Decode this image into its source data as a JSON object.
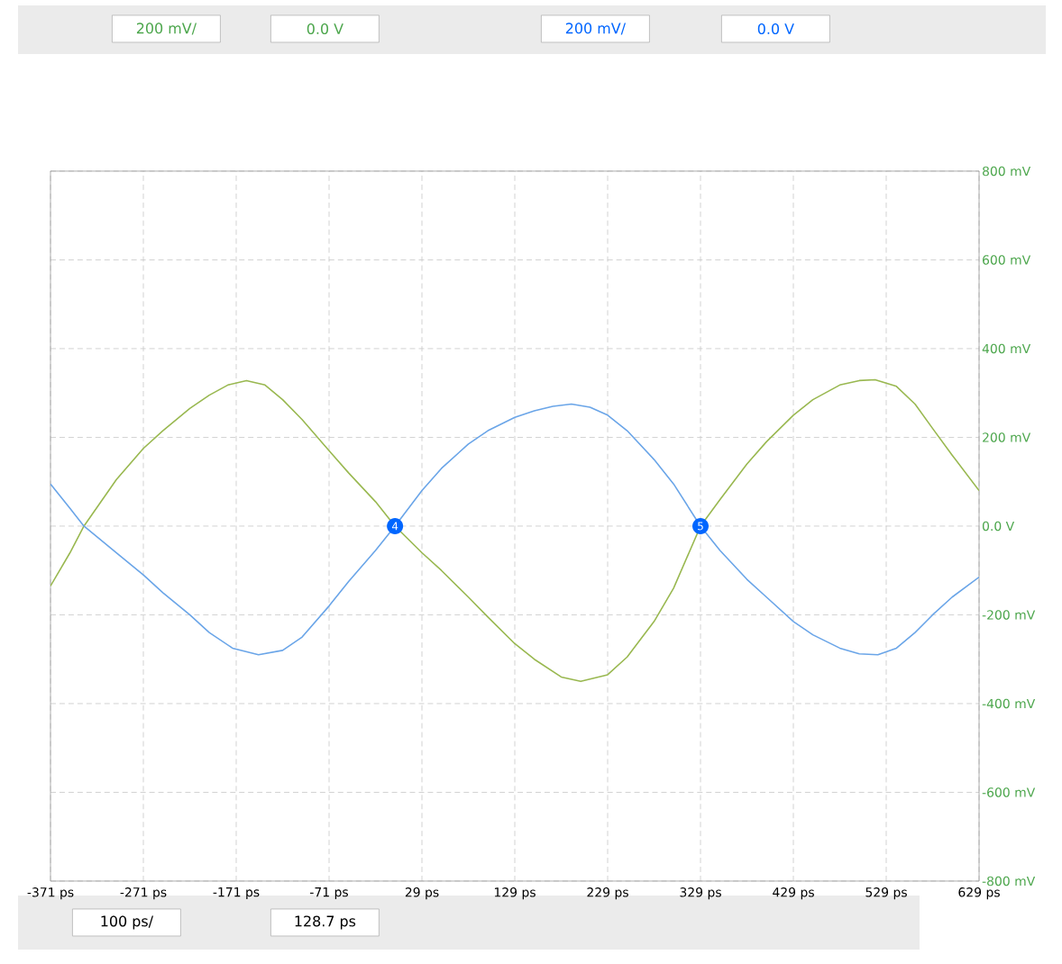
{
  "chart_data": {
    "type": "line",
    "xlim": [
      -371,
      629
    ],
    "ylim": [
      -800,
      800
    ],
    "xticks": [
      {
        "value": -371,
        "label": "-371 ps"
      },
      {
        "value": -271,
        "label": "-271 ps"
      },
      {
        "value": -171,
        "label": "-171 ps"
      },
      {
        "value": -71,
        "label": "-71 ps"
      },
      {
        "value": 29,
        "label": "29 ps"
      },
      {
        "value": 129,
        "label": "129 ps"
      },
      {
        "value": 229,
        "label": "229 ps"
      },
      {
        "value": 329,
        "label": "329 ps"
      },
      {
        "value": 429,
        "label": "429 ps"
      },
      {
        "value": 529,
        "label": "529 ps"
      },
      {
        "value": 629,
        "label": "629 ps"
      }
    ],
    "yticks": [
      {
        "value": -800,
        "label": "-800 mV"
      },
      {
        "value": -600,
        "label": "-600 mV"
      },
      {
        "value": -400,
        "label": "-400 mV"
      },
      {
        "value": -200,
        "label": "-200 mV"
      },
      {
        "value": 0,
        "label": "0.0 V"
      },
      {
        "value": 200,
        "label": "200 mV"
      },
      {
        "value": 400,
        "label": "400 mV"
      },
      {
        "value": 600,
        "label": "600 mV"
      },
      {
        "value": 800,
        "label": "800 mV"
      }
    ],
    "grid": true,
    "marker": "none",
    "line_style": "solid",
    "annotations": [
      "200 mV/",
      "0.0 V",
      "200 mV/",
      "0.0 V",
      "100 ps/",
      "128.7 ps",
      {
        "text": "4",
        "x": 0,
        "y": 0
      },
      {
        "text": "5",
        "x": 329,
        "y": 0
      }
    ],
    "series": [
      {
        "color": "#99b850",
        "x": [
          -371,
          -350,
          -335,
          -300,
          -271,
          -250,
          -221,
          -200,
          -180,
          -160,
          -140,
          -121,
          -100,
          -71,
          -50,
          -21,
          0,
          29,
          50,
          79,
          100,
          129,
          150,
          179,
          200,
          229,
          250,
          279,
          300,
          329,
          350,
          379,
          400,
          429,
          450,
          479,
          500,
          517,
          540,
          560,
          579,
          600,
          629
        ],
        "values": [
          -135,
          -60,
          0,
          105,
          175,
          215,
          265,
          295,
          318,
          328,
          318,
          285,
          240,
          170,
          120,
          55,
          0,
          -60,
          -100,
          -160,
          -205,
          -265,
          -300,
          -340,
          -350,
          -335,
          -295,
          -215,
          -140,
          0,
          60,
          140,
          190,
          250,
          285,
          318,
          328,
          330,
          315,
          275,
          220,
          160,
          80
        ]
      },
      {
        "color": "#6aa5e8",
        "x": [
          -371,
          -350,
          -335,
          -300,
          -271,
          -250,
          -221,
          -200,
          -175,
          -147,
          -121,
          -100,
          -71,
          -50,
          -21,
          0,
          29,
          50,
          79,
          100,
          129,
          150,
          170,
          190,
          210,
          229,
          250,
          279,
          300,
          329,
          350,
          379,
          400,
          429,
          450,
          479,
          500,
          520,
          540,
          560,
          579,
          600,
          629
        ],
        "values": [
          95,
          40,
          0,
          -60,
          -110,
          -150,
          -200,
          -240,
          -275,
          -290,
          -280,
          -250,
          -180,
          -125,
          -55,
          0,
          80,
          130,
          185,
          215,
          245,
          260,
          270,
          275,
          268,
          250,
          215,
          150,
          95,
          0,
          -55,
          -120,
          -160,
          -215,
          -245,
          -275,
          -288,
          -290,
          -275,
          -240,
          -200,
          -160,
          -115
        ]
      }
    ]
  }
}
